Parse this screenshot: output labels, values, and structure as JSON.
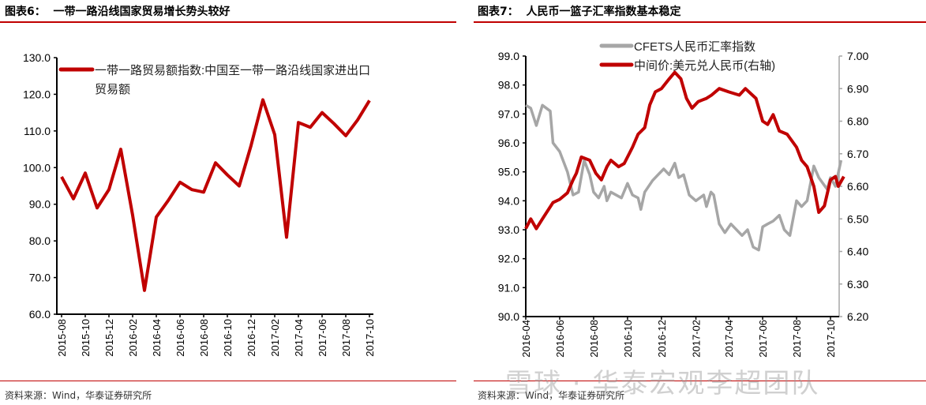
{
  "left": {
    "title": "图表6：  一带一路沿线国家贸易增长势头较好",
    "source": "资料来源：Wind，华泰证券研究所"
  },
  "right": {
    "title": "图表7：  人民币一篮子汇率指数基本稳定",
    "source": "资料来源：Wind，华泰证券研究所"
  },
  "watermark": "雪球 · 华泰宏观李超团队",
  "chart_data": [
    {
      "type": "line",
      "ylim": [
        60,
        130
      ],
      "yticks": [
        "60.0",
        "70.0",
        "80.0",
        "90.0",
        "100.0",
        "110.0",
        "120.0",
        "130.0"
      ],
      "xticks": [
        "2015-08",
        "2015-10",
        "2015-12",
        "2016-02",
        "2016-04",
        "2016-06",
        "2016-08",
        "2016-10",
        "2016-12",
        "2017-02",
        "2017-04",
        "2017-06",
        "2017-08",
        "2017-10"
      ],
      "legend_placement": "top",
      "series": [
        {
          "name": "一带一路贸易额指数:中国至一带一路沿线国家进出口贸易额",
          "color": "#c00000",
          "x": [
            "2015-08",
            "2015-09",
            "2015-10",
            "2015-11",
            "2015-12",
            "2016-01",
            "2016-02",
            "2016-03",
            "2016-04",
            "2016-05",
            "2016-06",
            "2016-07",
            "2016-08",
            "2016-09",
            "2016-10",
            "2016-11",
            "2016-12",
            "2017-01",
            "2017-02",
            "2017-03",
            "2017-04",
            "2017-05",
            "2017-06",
            "2017-07",
            "2017-08",
            "2017-09",
            "2017-10"
          ],
          "values": [
            97.5,
            91.5,
            98.5,
            89.0,
            94.0,
            105.0,
            87.0,
            66.5,
            86.5,
            91.0,
            96.0,
            94.0,
            93.3,
            101.3,
            98.0,
            95.0,
            106.0,
            118.5,
            109.0,
            81.0,
            112.3,
            111.0,
            115.0,
            112.0,
            108.7,
            113.0,
            118.3
          ]
        }
      ]
    },
    {
      "type": "line",
      "ylim": [
        90,
        99
      ],
      "y2lim": [
        6.2,
        7.0
      ],
      "yticks": [
        "90.0",
        "91.0",
        "92.0",
        "93.0",
        "94.0",
        "95.0",
        "96.0",
        "97.0",
        "98.0",
        "99.0"
      ],
      "y2ticks": [
        "6.20",
        "6.30",
        "6.40",
        "6.50",
        "6.60",
        "6.70",
        "6.80",
        "6.90",
        "7.00"
      ],
      "xticks": [
        "2016-04",
        "2016-06",
        "2016-08",
        "2016-10",
        "2016-12",
        "2017-02",
        "2017-04",
        "2017-06",
        "2017-08",
        "2017-10"
      ],
      "legend_placement": "top",
      "series": [
        {
          "name": "CFETS人民币汇率指数",
          "axis": "left",
          "color": "#a6a6a6",
          "x": [
            "2016-04-01",
            "2016-04-10",
            "2016-04-20",
            "2016-05-01",
            "2016-05-15",
            "2016-05-20",
            "2016-06-01",
            "2016-06-15",
            "2016-06-25",
            "2016-07-05",
            "2016-07-15",
            "2016-07-25",
            "2016-08-01",
            "2016-08-10",
            "2016-08-20",
            "2016-08-25",
            "2016-09-01",
            "2016-09-20",
            "2016-10-01",
            "2016-10-10",
            "2016-10-20",
            "2016-10-25",
            "2016-11-01",
            "2016-11-15",
            "2016-11-25",
            "2016-12-05",
            "2016-12-15",
            "2016-12-25",
            "2017-01-01",
            "2017-01-10",
            "2017-01-20",
            "2017-02-01",
            "2017-02-15",
            "2017-02-20",
            "2017-02-28",
            "2017-03-05",
            "2017-03-15",
            "2017-03-25",
            "2017-04-05",
            "2017-04-20",
            "2017-04-25",
            "2017-05-05",
            "2017-05-15",
            "2017-05-25",
            "2017-06-01",
            "2017-06-10",
            "2017-06-20",
            "2017-07-01",
            "2017-07-10",
            "2017-07-20",
            "2017-08-01",
            "2017-08-10",
            "2017-08-20",
            "2017-09-01",
            "2017-09-10",
            "2017-09-25",
            "2017-10-01",
            "2017-10-10",
            "2017-10-20"
          ],
          "values": [
            97.3,
            97.2,
            96.6,
            97.3,
            97.1,
            96.0,
            95.7,
            95.0,
            94.2,
            94.3,
            95.4,
            94.9,
            94.3,
            94.1,
            94.5,
            94.0,
            94.3,
            94.1,
            94.6,
            94.2,
            94.1,
            93.7,
            94.3,
            94.7,
            94.9,
            95.1,
            94.9,
            95.3,
            94.8,
            94.9,
            94.2,
            94.0,
            94.2,
            93.8,
            94.3,
            94.2,
            93.2,
            92.9,
            93.2,
            92.9,
            92.8,
            93.0,
            92.4,
            92.3,
            93.1,
            93.2,
            93.3,
            93.5,
            93.0,
            92.8,
            94.0,
            93.8,
            94.0,
            95.2,
            94.8,
            94.4,
            94.8,
            94.5,
            95.4
          ]
        },
        {
          "name": "中间价:美元兑人民币(右轴)",
          "axis": "right",
          "color": "#c00000",
          "x": [
            "2016-04-01",
            "2016-04-10",
            "2016-04-20",
            "2016-05-01",
            "2016-05-20",
            "2016-06-01",
            "2016-06-15",
            "2016-06-25",
            "2016-07-01",
            "2016-07-10",
            "2016-07-25",
            "2016-08-05",
            "2016-08-15",
            "2016-08-25",
            "2016-09-01",
            "2016-09-15",
            "2016-09-25",
            "2016-10-10",
            "2016-10-20",
            "2016-11-01",
            "2016-11-10",
            "2016-11-20",
            "2016-12-01",
            "2016-12-15",
            "2016-12-25",
            "2017-01-05",
            "2017-01-15",
            "2017-01-25",
            "2017-02-05",
            "2017-02-20",
            "2017-03-01",
            "2017-03-15",
            "2017-04-01",
            "2017-04-20",
            "2017-05-01",
            "2017-05-20",
            "2017-06-01",
            "2017-06-10",
            "2017-06-20",
            "2017-07-01",
            "2017-07-15",
            "2017-08-01",
            "2017-08-10",
            "2017-08-20",
            "2017-09-01",
            "2017-09-10",
            "2017-09-20",
            "2017-10-01",
            "2017-10-10",
            "2017-10-15",
            "2017-10-25"
          ],
          "values": [
            6.47,
            6.5,
            6.47,
            6.5,
            6.55,
            6.56,
            6.58,
            6.62,
            6.64,
            6.69,
            6.68,
            6.64,
            6.62,
            6.66,
            6.68,
            6.66,
            6.67,
            6.72,
            6.76,
            6.78,
            6.85,
            6.89,
            6.9,
            6.93,
            6.95,
            6.93,
            6.87,
            6.84,
            6.86,
            6.87,
            6.88,
            6.9,
            6.89,
            6.88,
            6.9,
            6.87,
            6.8,
            6.79,
            6.82,
            6.77,
            6.76,
            6.72,
            6.68,
            6.66,
            6.6,
            6.52,
            6.54,
            6.62,
            6.63,
            6.6,
            6.63
          ]
        }
      ]
    }
  ]
}
